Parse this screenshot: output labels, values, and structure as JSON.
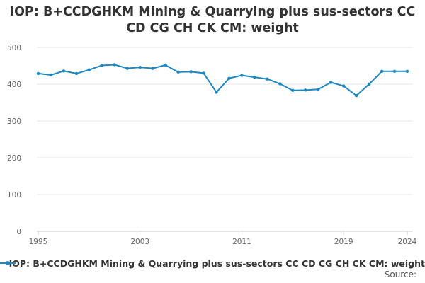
{
  "chart_data": {
    "type": "line",
    "title": "IOP: B+CCDGHKM Mining & Quarrying plus sus-sectors CC CD CG CH CK CM: weight",
    "xlabel": "",
    "ylabel": "",
    "x": [
      1995,
      1996,
      1997,
      1998,
      1999,
      2000,
      2001,
      2002,
      2003,
      2004,
      2005,
      2006,
      2007,
      2008,
      2009,
      2010,
      2011,
      2012,
      2013,
      2014,
      2015,
      2016,
      2017,
      2018,
      2019,
      2020,
      2021,
      2022,
      2023,
      2024
    ],
    "series": [
      {
        "name": "IOP: B+CCDGHKM Mining & Quarrying plus sus-sectors CC CD CG CH CK CM: weight",
        "color": "#1f87c0",
        "values": [
          429,
          425,
          436,
          429,
          439,
          451,
          453,
          443,
          446,
          443,
          452,
          433,
          434,
          430,
          378,
          416,
          424,
          419,
          414,
          401,
          383,
          384,
          386,
          405,
          395,
          369,
          400,
          435,
          435,
          435
        ]
      }
    ],
    "xticks": [
      1995,
      2003,
      2011,
      2019,
      2024
    ],
    "yticks": [
      0,
      100,
      200,
      300,
      400,
      500
    ],
    "xlim": [
      1995,
      2024
    ],
    "ylim": [
      0,
      500
    ],
    "grid": true,
    "legend": "bottom"
  },
  "source_label": "Source:"
}
